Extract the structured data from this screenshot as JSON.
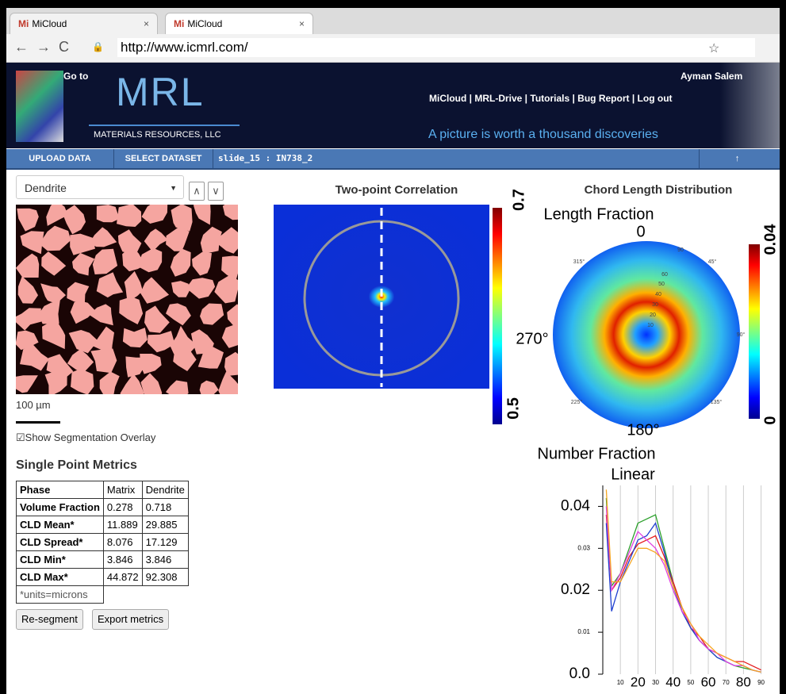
{
  "browser": {
    "tabs": [
      "MiCloud",
      "MiCloud"
    ],
    "url": "http://www.icmrl.com/"
  },
  "header": {
    "goto": "Go to",
    "logo": "MRL",
    "company": "MATERIALS RESOURCES, LLC",
    "user": "Ayman Salem",
    "nav": "MiCloud | MRL-Drive | Tutorials | Bug Report | Log out",
    "tagline": "A picture is worth a thousand discoveries"
  },
  "toolbar": {
    "upload": "UPLOAD DATA",
    "select": "SELECT DATASET",
    "dataset": "slide_15 : IN738_2",
    "up": "↑"
  },
  "left": {
    "phase_select": "Dendrite",
    "up_button": "∧",
    "down_button": "∨",
    "scale": "100 µm",
    "overlay": "Show Segmentation Overlay",
    "metrics_title": "Single Point Metrics",
    "table": {
      "header": [
        "Phase",
        "Matrix",
        "Dendrite"
      ],
      "rows": [
        [
          "Volume Fraction",
          "0.278",
          "0.718"
        ],
        [
          "CLD Mean*",
          "11.889",
          "29.885"
        ],
        [
          "CLD Spread*",
          "8.076",
          "17.129"
        ],
        [
          "CLD Min*",
          "3.846",
          "3.846"
        ],
        [
          "CLD Max*",
          "44.872",
          "92.308"
        ]
      ],
      "note": "*units=microns"
    },
    "buttons": [
      "Re-segment",
      "Export metrics"
    ]
  },
  "two_point": {
    "title": "Two-point Correlation",
    "colorbar_max": "0.7",
    "colorbar_min": "0.5"
  },
  "cld": {
    "title": "Chord Length Distribution",
    "label": "Length Fraction",
    "angle_top": "0",
    "angle_left": "270°",
    "angle_bottom": "180°",
    "small_angles": [
      "315°",
      "45°",
      "90°",
      "135°",
      "225°"
    ],
    "radial": [
      "10",
      "20",
      "30",
      "40",
      "50",
      "60",
      "90"
    ],
    "colorbar_max": "0.04",
    "colorbar_min": "0"
  },
  "chart_data": {
    "type": "line",
    "title": "Number Fraction",
    "subtitle": "Linear",
    "x": [
      2,
      5,
      10,
      15,
      20,
      25,
      30,
      35,
      40,
      45,
      50,
      55,
      60,
      65,
      70,
      75,
      80,
      85,
      90
    ],
    "series": [
      {
        "color": "#2ca02c",
        "values": [
          0.042,
          0.021,
          0.024,
          0.03,
          0.036,
          0.037,
          0.038,
          0.03,
          0.022,
          0.015,
          0.011,
          0.008,
          0.006,
          0.004,
          0.003,
          0.002,
          0.0015,
          0.001,
          0.0005
        ]
      },
      {
        "color": "#e41a1c",
        "values": [
          0.038,
          0.02,
          0.023,
          0.028,
          0.031,
          0.032,
          0.033,
          0.028,
          0.022,
          0.016,
          0.011,
          0.009,
          0.006,
          0.005,
          0.004,
          0.003,
          0.003,
          0.002,
          0.001
        ]
      },
      {
        "color": "#1f3fd0",
        "values": [
          0.036,
          0.015,
          0.022,
          0.027,
          0.032,
          0.033,
          0.036,
          0.029,
          0.021,
          0.015,
          0.011,
          0.008,
          0.006,
          0.004,
          0.003,
          0.002,
          0.002,
          0.001,
          0.0005
        ]
      },
      {
        "color": "#e040e0",
        "values": [
          0.04,
          0.02,
          0.024,
          0.029,
          0.034,
          0.032,
          0.03,
          0.026,
          0.02,
          0.015,
          0.012,
          0.008,
          0.006,
          0.005,
          0.003,
          0.002,
          0.002,
          0.001,
          0.0005
        ]
      },
      {
        "color": "#f5a623",
        "values": [
          0.044,
          0.022,
          0.022,
          0.026,
          0.03,
          0.03,
          0.029,
          0.027,
          0.021,
          0.016,
          0.012,
          0.009,
          0.007,
          0.005,
          0.004,
          0.003,
          0.002,
          0.001,
          0.0005
        ]
      }
    ],
    "xlim": [
      0,
      92
    ],
    "ylim": [
      0,
      0.045
    ],
    "xticks": [
      10,
      20,
      30,
      40,
      50,
      60,
      70,
      80,
      90
    ],
    "yticks": [
      {
        "value": 0,
        "label": "0.0"
      },
      0.01,
      0.02,
      0.03,
      0.04
    ],
    "grid": true
  }
}
